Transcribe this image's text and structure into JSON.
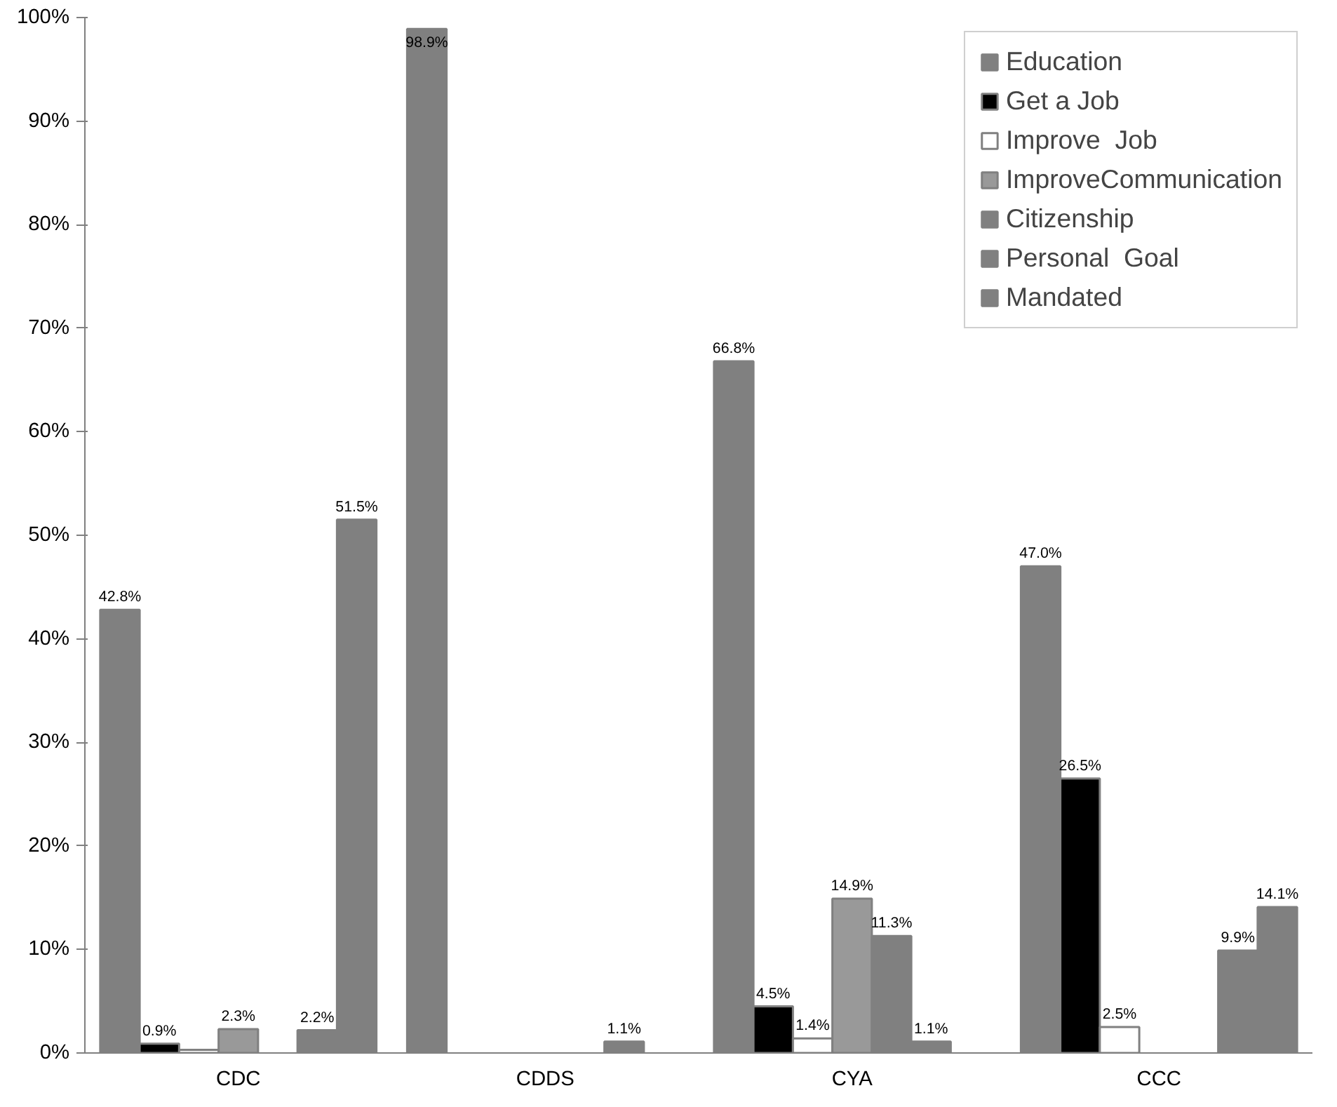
{
  "chart_data": {
    "type": "bar",
    "categories": [
      "CDC",
      "CDDS",
      "CYA",
      "CCC"
    ],
    "series": [
      {
        "name": "Education",
        "color": "#808080",
        "values": [
          42.8,
          98.9,
          66.8,
          47.0
        ],
        "value_labels": [
          "42.8%",
          "98.9%",
          "66.8%",
          "47.0%"
        ]
      },
      {
        "name": "Get a Job",
        "color": "#000000",
        "values": [
          0.9,
          null,
          4.5,
          26.5
        ],
        "value_labels": [
          "0.9%",
          null,
          "4.5%",
          "26.5%"
        ]
      },
      {
        "name": "Improve  Job",
        "color": "#ffffff",
        "values": [
          0.3,
          null,
          1.4,
          2.5
        ],
        "value_labels": [
          null,
          null,
          "1.4%",
          "2.5%"
        ]
      },
      {
        "name": "ImproveCommunication",
        "color": "#999999",
        "values": [
          2.3,
          null,
          14.9,
          null
        ],
        "value_labels": [
          "2.3%",
          null,
          "14.9%",
          null
        ]
      },
      {
        "name": "Citizenship",
        "color": "#808080",
        "values": [
          null,
          null,
          11.3,
          null
        ],
        "value_labels": [
          null,
          null,
          "11.3%",
          null
        ]
      },
      {
        "name": "Personal  Goal",
        "color": "#808080",
        "values": [
          2.2,
          1.1,
          1.1,
          9.9
        ],
        "value_labels": [
          "2.2%",
          "1.1%",
          "1.1%",
          "9.9%"
        ]
      },
      {
        "name": "Mandated",
        "color": "#808080",
        "values": [
          51.5,
          null,
          null,
          14.1
        ],
        "value_labels": [
          "51.5%",
          null,
          null,
          "14.1%"
        ]
      }
    ],
    "ylim": [
      0,
      100
    ],
    "yticks": [
      {
        "value": 0,
        "label": "0%"
      },
      {
        "value": 10,
        "label": "10%"
      },
      {
        "value": 20,
        "label": "20%"
      },
      {
        "value": 30,
        "label": "30%"
      },
      {
        "value": 40,
        "label": "40%"
      },
      {
        "value": 50,
        "label": "50%"
      },
      {
        "value": 60,
        "label": "60%"
      },
      {
        "value": 70,
        "label": "70%"
      },
      {
        "value": 80,
        "label": "80%"
      },
      {
        "value": 90,
        "label": "90%"
      },
      {
        "value": 100,
        "label": "100%"
      }
    ],
    "legend": "top right"
  }
}
